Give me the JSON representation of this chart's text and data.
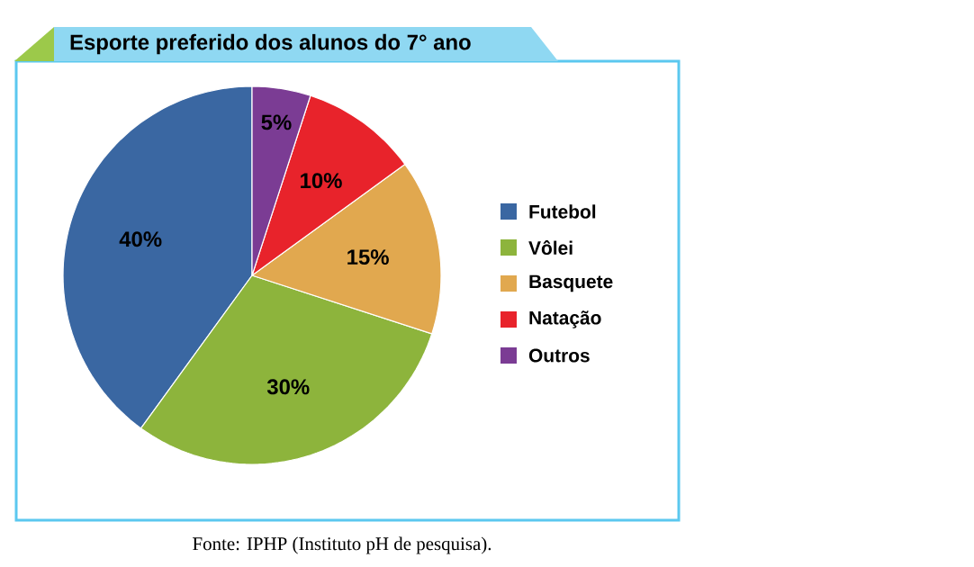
{
  "chart_data": {
    "type": "pie",
    "title": "Esporte preferido dos alunos do 7° ano",
    "categories": [
      "Futebol",
      "Vôlei",
      "Basquete",
      "Natação",
      "Outros"
    ],
    "values": [
      40,
      30,
      15,
      10,
      5
    ],
    "colors": [
      "#3a67a2",
      "#8db43c",
      "#e1a84f",
      "#e8232b",
      "#7b3c94"
    ],
    "value_labels": [
      "40%",
      "30%",
      "15%",
      "10%",
      "5%"
    ],
    "legend": "right",
    "annotations": [
      "Fonte: IPHP (Instituto pH de pesquisa)."
    ]
  }
}
